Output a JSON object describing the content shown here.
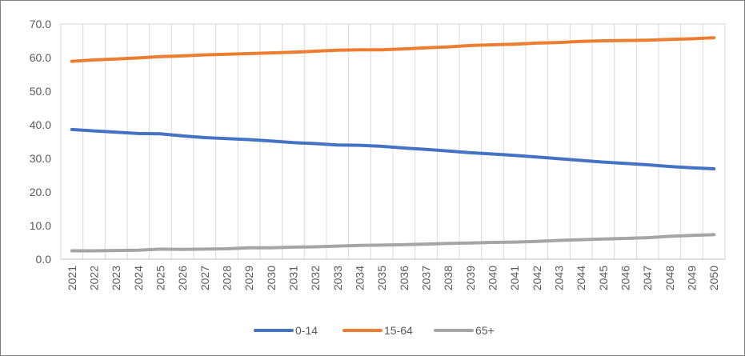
{
  "chart_data": {
    "type": "line",
    "title": "",
    "xlabel": "",
    "ylabel": "",
    "ylim": [
      0,
      70
    ],
    "yticks": [
      "0.0",
      "10.0",
      "20.0",
      "30.0",
      "40.0",
      "50.0",
      "60.0",
      "70.0"
    ],
    "grid": "vertical",
    "legend_position": "bottom",
    "x": [
      "2021",
      "2022",
      "2023",
      "2024",
      "2025",
      "2026",
      "2027",
      "2028",
      "2029",
      "2030",
      "2031",
      "2032",
      "2033",
      "2034",
      "2035",
      "2036",
      "2037",
      "2038",
      "2039",
      "2040",
      "2041",
      "2042",
      "2043",
      "2044",
      "2045",
      "2046",
      "2047",
      "2048",
      "2049",
      "2050"
    ],
    "series": [
      {
        "name": "0-14",
        "color": "#4472c4",
        "values": [
          38.6,
          38.2,
          37.8,
          37.4,
          37.3,
          36.7,
          36.2,
          35.9,
          35.6,
          35.2,
          34.7,
          34.4,
          34.0,
          33.9,
          33.6,
          33.1,
          32.7,
          32.2,
          31.7,
          31.3,
          30.9,
          30.4,
          29.9,
          29.4,
          28.9,
          28.5,
          28.1,
          27.6,
          27.2,
          26.9
        ]
      },
      {
        "name": "15-64",
        "color": "#ed7d31",
        "values": [
          58.9,
          59.3,
          59.6,
          59.9,
          60.3,
          60.5,
          60.8,
          61.0,
          61.2,
          61.4,
          61.6,
          61.9,
          62.2,
          62.3,
          62.3,
          62.6,
          62.9,
          63.2,
          63.6,
          63.8,
          64.0,
          64.3,
          64.5,
          64.8,
          65.0,
          65.1,
          65.2,
          65.4,
          65.6,
          65.9
        ]
      },
      {
        "name": "65+",
        "color": "#a5a5a5",
        "values": [
          2.5,
          2.5,
          2.6,
          2.7,
          3.0,
          2.9,
          3.0,
          3.1,
          3.4,
          3.4,
          3.6,
          3.7,
          3.9,
          4.1,
          4.2,
          4.3,
          4.5,
          4.7,
          4.8,
          5.0,
          5.1,
          5.3,
          5.6,
          5.8,
          6.0,
          6.2,
          6.4,
          6.8,
          7.1,
          7.3
        ]
      }
    ]
  }
}
